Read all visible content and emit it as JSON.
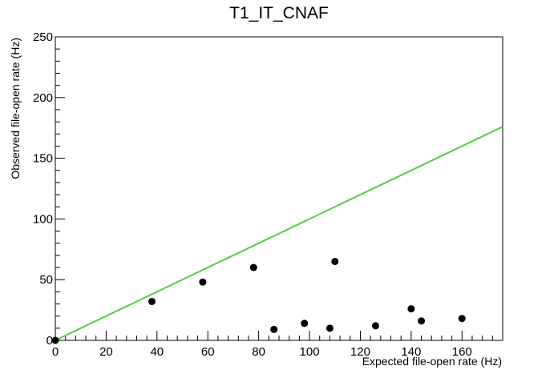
{
  "chart_data": {
    "type": "scatter",
    "title": "T1_IT_CNAF",
    "xlabel": "Expected file-open rate (Hz)",
    "ylabel": "Observed file-open rate (Hz)",
    "xlim": [
      0,
      176
    ],
    "ylim": [
      0,
      250
    ],
    "x_ticks": [
      0,
      20,
      40,
      60,
      80,
      100,
      120,
      140,
      160
    ],
    "y_ticks": [
      0,
      50,
      100,
      150,
      200,
      250
    ],
    "x_tick_labels": [
      "0",
      "20",
      "40",
      "60",
      "80",
      "100",
      "120",
      "140",
      "160"
    ],
    "y_tick_labels": [
      "0",
      "50",
      "100",
      "150",
      "200",
      "250"
    ],
    "grid": false,
    "points": [
      {
        "x": 0,
        "y": 0
      },
      {
        "x": 38,
        "y": 32
      },
      {
        "x": 58,
        "y": 48
      },
      {
        "x": 78,
        "y": 60
      },
      {
        "x": 86,
        "y": 9
      },
      {
        "x": 98,
        "y": 14
      },
      {
        "x": 108,
        "y": 10
      },
      {
        "x": 110,
        "y": 65
      },
      {
        "x": 126,
        "y": 12
      },
      {
        "x": 140,
        "y": 26
      },
      {
        "x": 144,
        "y": 16
      },
      {
        "x": 160,
        "y": 18
      }
    ],
    "reference_line": {
      "x": [
        0,
        176
      ],
      "y": [
        0,
        176
      ],
      "color": "#55cc44"
    },
    "marker_color": "#000000"
  }
}
